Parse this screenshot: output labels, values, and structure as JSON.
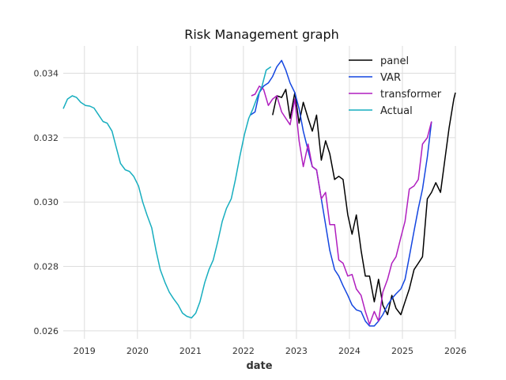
{
  "chart_data": {
    "type": "line",
    "title": "Risk Management graph",
    "xlabel": "date",
    "ylabel": "",
    "xlim": [
      2018.6,
      2026.0
    ],
    "ylim": [
      0.02575,
      0.03485
    ],
    "xticks": [
      {
        "value": 2019,
        "label": "2019"
      },
      {
        "value": 2020,
        "label": "2020"
      },
      {
        "value": 2021,
        "label": "2021"
      },
      {
        "value": 2022,
        "label": "2022"
      },
      {
        "value": 2023,
        "label": "2023"
      },
      {
        "value": 2024,
        "label": "2024"
      },
      {
        "value": 2025,
        "label": "2025"
      },
      {
        "value": 2026,
        "label": "2026"
      }
    ],
    "yticks": [
      {
        "value": 0.026,
        "label": "0.026"
      },
      {
        "value": 0.028,
        "label": "0.028"
      },
      {
        "value": 0.03,
        "label": "0.030"
      },
      {
        "value": 0.032,
        "label": "0.032"
      },
      {
        "value": 0.034,
        "label": "0.034"
      }
    ],
    "grid": true,
    "legend_position": "top-right",
    "series": [
      {
        "name": "panel",
        "color": "#000000",
        "x": [
          2022.55,
          2022.63,
          2022.72,
          2022.8,
          2022.88,
          2022.97,
          2023.05,
          2023.13,
          2023.22,
          2023.3,
          2023.38,
          2023.47,
          2023.55,
          2023.63,
          2023.72,
          2023.8,
          2023.88,
          2023.97,
          2024.05,
          2024.13,
          2024.22,
          2024.3,
          2024.38,
          2024.47,
          2024.55,
          2024.63,
          2024.72,
          2024.8,
          2024.88,
          2024.97,
          2025.05,
          2025.13,
          2025.22,
          2025.3,
          2025.38,
          2025.47,
          2025.55,
          2025.63,
          2025.72,
          2025.8,
          2025.88,
          2025.97,
          2026.0
        ],
        "y": [
          0.0327,
          0.0333,
          0.03325,
          0.0335,
          0.0326,
          0.0334,
          0.03245,
          0.0331,
          0.0326,
          0.0322,
          0.0327,
          0.0313,
          0.0319,
          0.0315,
          0.0307,
          0.0308,
          0.0307,
          0.0296,
          0.029,
          0.0296,
          0.0285,
          0.0277,
          0.0277,
          0.0269,
          0.0276,
          0.0268,
          0.0265,
          0.0271,
          0.0267,
          0.0265,
          0.0269,
          0.0273,
          0.0279,
          0.0281,
          0.0283,
          0.0301,
          0.0303,
          0.0306,
          0.0303,
          0.0313,
          0.0323,
          0.0332,
          0.0334
        ]
      },
      {
        "name": "VAR",
        "color": "#1446e0",
        "x": [
          2022.13,
          2022.22,
          2022.3,
          2022.38,
          2022.47,
          2022.55,
          2022.63,
          2022.72,
          2022.8,
          2022.88,
          2022.97,
          2023.05,
          2023.13,
          2023.22,
          2023.3,
          2023.38,
          2023.47,
          2023.55,
          2023.63,
          2023.72,
          2023.8,
          2023.88,
          2023.97,
          2024.05,
          2024.13,
          2024.22,
          2024.3,
          2024.38,
          2024.47,
          2024.55,
          2024.63,
          2024.72,
          2024.8,
          2024.88,
          2024.97,
          2025.05,
          2025.13,
          2025.22,
          2025.3,
          2025.38,
          2025.47,
          2025.55
        ],
        "y": [
          0.0327,
          0.0328,
          0.0334,
          0.0336,
          0.0337,
          0.0339,
          0.0342,
          0.0344,
          0.0341,
          0.0337,
          0.0334,
          0.0329,
          0.0322,
          0.0316,
          0.0311,
          0.031,
          0.0301,
          0.0293,
          0.0285,
          0.0279,
          0.0277,
          0.0274,
          0.0271,
          0.0268,
          0.02665,
          0.0266,
          0.0263,
          0.02615,
          0.02615,
          0.0263,
          0.0265,
          0.0268,
          0.027,
          0.02715,
          0.0273,
          0.0276,
          0.0283,
          0.0291,
          0.0298,
          0.0304,
          0.0314,
          0.0325
        ]
      },
      {
        "name": "transformer",
        "color": "#b01fbf",
        "x": [
          2022.15,
          2022.22,
          2022.3,
          2022.38,
          2022.47,
          2022.55,
          2022.63,
          2022.72,
          2022.8,
          2022.88,
          2022.97,
          2023.05,
          2023.13,
          2023.22,
          2023.3,
          2023.38,
          2023.47,
          2023.55,
          2023.63,
          2023.72,
          2023.8,
          2023.88,
          2023.97,
          2024.05,
          2024.13,
          2024.22,
          2024.3,
          2024.38,
          2024.47,
          2024.55,
          2024.63,
          2024.72,
          2024.8,
          2024.88,
          2024.97,
          2025.05,
          2025.13,
          2025.22,
          2025.3,
          2025.38,
          2025.47,
          2025.55
        ],
        "y": [
          0.0333,
          0.03335,
          0.0336,
          0.0335,
          0.033,
          0.0332,
          0.0333,
          0.0328,
          0.0326,
          0.0324,
          0.0332,
          0.0319,
          0.0311,
          0.0318,
          0.0311,
          0.031,
          0.0301,
          0.0303,
          0.0293,
          0.0293,
          0.0282,
          0.0281,
          0.0277,
          0.02775,
          0.0273,
          0.0271,
          0.0266,
          0.0262,
          0.0266,
          0.0263,
          0.0272,
          0.0276,
          0.0281,
          0.0283,
          0.0289,
          0.0294,
          0.0304,
          0.0305,
          0.0307,
          0.0318,
          0.032,
          0.0325
        ]
      },
      {
        "name": "Actual",
        "color": "#17aebf",
        "x": [
          2018.6,
          2018.68,
          2018.77,
          2018.85,
          2018.93,
          2019.02,
          2019.1,
          2019.18,
          2019.27,
          2019.35,
          2019.43,
          2019.52,
          2019.6,
          2019.68,
          2019.77,
          2019.85,
          2019.93,
          2020.02,
          2020.1,
          2020.18,
          2020.27,
          2020.35,
          2020.43,
          2020.52,
          2020.6,
          2020.68,
          2020.77,
          2020.85,
          2020.93,
          2021.02,
          2021.1,
          2021.18,
          2021.27,
          2021.35,
          2021.43,
          2021.52,
          2021.6,
          2021.68,
          2021.77,
          2021.85,
          2021.93,
          2022.02,
          2022.1,
          2022.18,
          2022.27,
          2022.35,
          2022.43,
          2022.52
        ],
        "y": [
          0.0329,
          0.0332,
          0.0333,
          0.03325,
          0.0331,
          0.033,
          0.03298,
          0.03292,
          0.0327,
          0.0325,
          0.03245,
          0.0322,
          0.0317,
          0.0312,
          0.031,
          0.03095,
          0.0308,
          0.0305,
          0.03,
          0.0296,
          0.0292,
          0.0285,
          0.0279,
          0.0275,
          0.0272,
          0.027,
          0.0268,
          0.02655,
          0.02645,
          0.0264,
          0.02655,
          0.0269,
          0.0275,
          0.0279,
          0.0282,
          0.0288,
          0.0294,
          0.0298,
          0.0301,
          0.0307,
          0.0314,
          0.0321,
          0.0326,
          0.0329,
          0.0333,
          0.0336,
          0.0341,
          0.0342
        ]
      }
    ]
  }
}
